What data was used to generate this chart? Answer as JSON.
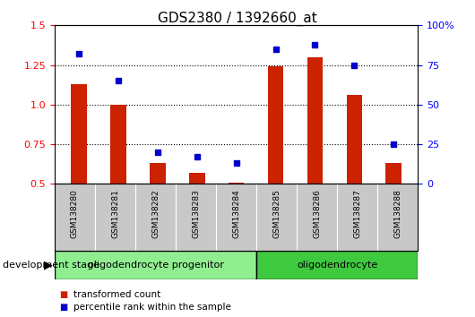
{
  "title": "GDS2380 / 1392660_at",
  "samples": [
    "GSM138280",
    "GSM138281",
    "GSM138282",
    "GSM138283",
    "GSM138284",
    "GSM138285",
    "GSM138286",
    "GSM138287",
    "GSM138288"
  ],
  "red_values": [
    1.13,
    1.0,
    0.63,
    0.57,
    0.51,
    1.24,
    1.3,
    1.06,
    0.63
  ],
  "blue_values": [
    82,
    65,
    20,
    17,
    13,
    85,
    88,
    75,
    25
  ],
  "ylim_left": [
    0.5,
    1.5
  ],
  "ylim_right": [
    0,
    100
  ],
  "yticks_left": [
    0.5,
    0.75,
    1.0,
    1.25,
    1.5
  ],
  "yticks_right": [
    0,
    25,
    50,
    75,
    100
  ],
  "bar_color": "#cc2200",
  "dot_color": "#0000cc",
  "plot_bg_color": "#ffffff",
  "sample_bg_color": "#c8c8c8",
  "grp1_color": "#90ee90",
  "grp2_color": "#3fc93f",
  "legend_red": "transformed count",
  "legend_blue": "percentile rank within the sample",
  "development_stage_label": "development stage",
  "grp1_label": "oligodendrocyte progenitor",
  "grp1_count": 5,
  "grp2_label": "oligodendrocyte",
  "grp2_count": 4
}
